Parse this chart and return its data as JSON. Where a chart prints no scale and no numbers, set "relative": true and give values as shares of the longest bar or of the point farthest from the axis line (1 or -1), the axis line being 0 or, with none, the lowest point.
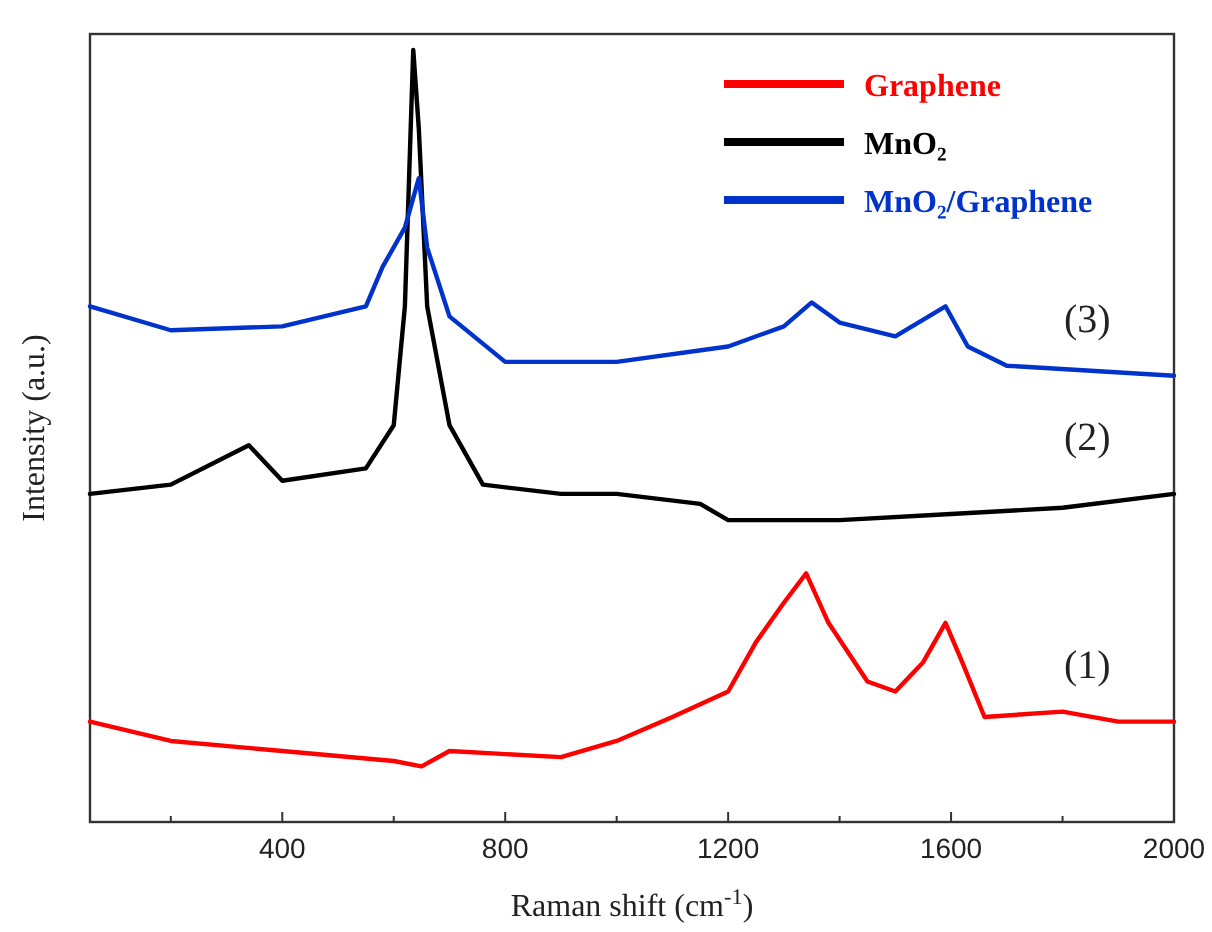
{
  "chart_data": {
    "type": "line",
    "relative": true,
    "xlabel": "Raman shift (cm$^{-1}$)",
    "ylabel": "Intensity (a.u.)",
    "xlim": [
      55,
      2000
    ],
    "xticks": [
      {
        "value": 200,
        "label": null
      },
      400,
      {
        "value": 600,
        "label": null
      },
      800,
      {
        "value": 1000,
        "label": null
      },
      1200,
      {
        "value": 1400,
        "label": null
      },
      1600,
      {
        "value": 1800,
        "label": null
      },
      2000
    ],
    "legend": "top right",
    "grid": false,
    "tick_labels": "x",
    "marker": "none",
    "line_style": "solid",
    "annotations": [
      "(1)",
      "(2)",
      "(3)"
    ],
    "series": [
      {
        "name": "Graphene",
        "color": "#ff0000",
        "x": [
          55,
          200,
          400,
          600,
          650,
          700,
          900,
          1000,
          1100,
          1200,
          1250,
          1300,
          1340,
          1380,
          1450,
          1500,
          1550,
          1590,
          1620,
          1660,
          1800,
          1900,
          2000
        ],
        "values": [
          0.13,
          0.105,
          0.092,
          0.079,
          0.072,
          0.092,
          0.084,
          0.105,
          0.136,
          0.169,
          0.233,
          0.284,
          0.322,
          0.258,
          0.182,
          0.169,
          0.207,
          0.258,
          0.207,
          0.136,
          0.143,
          0.13,
          0.13
        ]
      },
      {
        "name": "MnO₂",
        "color": "#000000",
        "x": [
          55,
          200,
          340,
          400,
          550,
          600,
          620,
          635,
          645,
          660,
          700,
          760,
          900,
          1000,
          1150,
          1200,
          1400,
          1600,
          1800,
          2000
        ],
        "values": [
          0.425,
          0.437,
          0.488,
          0.442,
          0.458,
          0.514,
          0.668,
          1,
          0.898,
          0.668,
          0.514,
          0.437,
          0.425,
          0.425,
          0.412,
          0.391,
          0.391,
          0.399,
          0.407,
          0.425
        ]
      },
      {
        "name": "MnO₂/Graphene",
        "color": "#0033cc",
        "x": [
          55,
          200,
          400,
          550,
          580,
          620,
          645,
          660,
          700,
          800,
          1000,
          1200,
          1300,
          1350,
          1400,
          1500,
          1590,
          1630,
          1700,
          2000
        ],
        "values": [
          0.668,
          0.637,
          0.642,
          0.668,
          0.719,
          0.77,
          0.834,
          0.744,
          0.655,
          0.596,
          0.596,
          0.616,
          0.642,
          0.673,
          0.647,
          0.629,
          0.668,
          0.616,
          0.591,
          0.578
        ]
      }
    ]
  }
}
